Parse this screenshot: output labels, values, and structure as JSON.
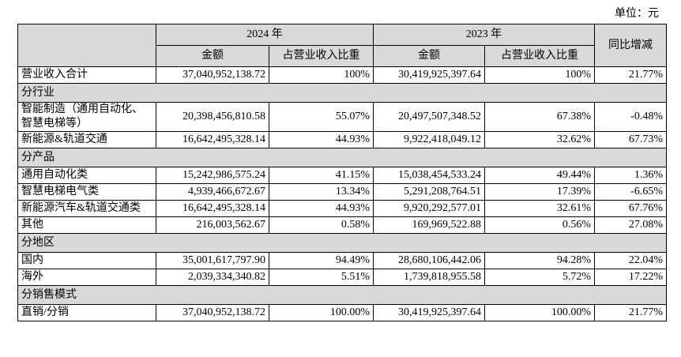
{
  "unit": "单位：元",
  "header": {
    "year1": "2024 年",
    "year2": "2023 年",
    "amount": "金额",
    "share": "占营业收入比重",
    "yoy": "同比增减"
  },
  "rows": [
    {
      "label": "营业收入合计",
      "cells": [
        "37,040,952,138.72",
        "100%",
        "30,419,925,397.64",
        "100%",
        "21.77%"
      ]
    },
    {
      "section": "分行业"
    },
    {
      "label": "智能制造（通用自动化、智慧电梯等）",
      "cells": [
        "20,398,456,810.58",
        "55.07%",
        "20,497,507,348.52",
        "67.38%",
        "-0.48%"
      ]
    },
    {
      "label": "新能源&轨道交通",
      "cells": [
        "16,642,495,328.14",
        "44.93%",
        "9,922,418,049.12",
        "32.62%",
        "67.73%"
      ]
    },
    {
      "section": "分产品"
    },
    {
      "label": "通用自动化类",
      "cells": [
        "15,242,986,575.24",
        "41.15%",
        "15,038,454,533.24",
        "49.44%",
        "1.36%"
      ]
    },
    {
      "label": "智慧电梯电气类",
      "cells": [
        "4,939,466,672.67",
        "13.34%",
        "5,291,208,764.51",
        "17.39%",
        "-6.65%"
      ]
    },
    {
      "label": "新能源汽车&轨道交通类",
      "cells": [
        "16,642,495,328.14",
        "44.93%",
        "9,920,292,577.01",
        "32.61%",
        "67.76%"
      ]
    },
    {
      "label": "其他",
      "cells": [
        "216,003,562.67",
        "0.58%",
        "169,969,522.88",
        "0.56%",
        "27.08%"
      ]
    },
    {
      "section": "分地区"
    },
    {
      "label": "国内",
      "cells": [
        "35,001,617,797.90",
        "94.49%",
        "28,680,106,442.06",
        "94.28%",
        "22.04%"
      ]
    },
    {
      "label": "海外",
      "cells": [
        "2,039,334,340.82",
        "5.51%",
        "1,739,818,955.58",
        "5.72%",
        "17.22%"
      ]
    },
    {
      "section": "分销售模式"
    },
    {
      "label": "直销/分销",
      "cells": [
        "37,040,952,138.72",
        "100.00%",
        "30,419,925,397.64",
        "100.00%",
        "21.77%"
      ]
    }
  ]
}
